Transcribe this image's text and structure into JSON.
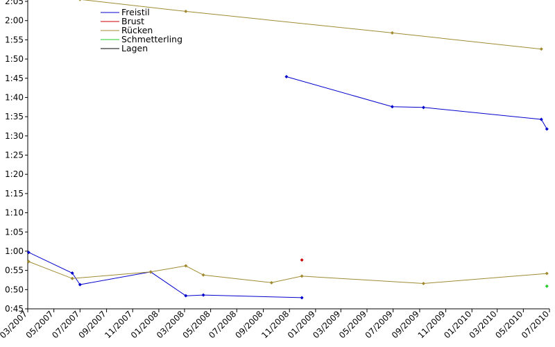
{
  "chart_data": {
    "type": "line",
    "title": "",
    "xlabel": "",
    "ylabel": "",
    "x_range": [
      "2007-03-01",
      "2010-07-01"
    ],
    "y_range": [
      "0:45",
      "2:05"
    ],
    "grid": false,
    "legend_position": "top-left",
    "x_ticks": [
      "03/2007",
      "05/2007",
      "07/2007",
      "09/2007",
      "11/2007",
      "01/2008",
      "03/2008",
      "05/2008",
      "07/2008",
      "09/2008",
      "11/2008",
      "01/2009",
      "03/2009",
      "05/2009",
      "07/2009",
      "09/2009",
      "11/2009",
      "01/2010",
      "03/2010",
      "05/2010",
      "07/2010"
    ],
    "y_ticks": [
      "0:45",
      "0:50",
      "0:55",
      "1:00",
      "1:05",
      "1:10",
      "1:15",
      "1:20",
      "1:25",
      "1:30",
      "1:35",
      "1:40",
      "1:45",
      "1:50",
      "1:55",
      "2:00",
      "2:05"
    ],
    "series": [
      {
        "name": "Freistil",
        "color": "#0000cc",
        "lines": [
          [
            [
              "2007-03-03",
              "0:59.7"
            ],
            [
              "2007-06-13",
              "0:54.3"
            ],
            [
              "2007-07-01",
              "0:51.3"
            ],
            [
              "2007-12-13",
              "0:54.6"
            ],
            [
              "2008-03-04",
              "0:48.4"
            ],
            [
              "2008-04-14",
              "0:48.6"
            ],
            [
              "2008-11-30",
              "0:47.9"
            ]
          ],
          [
            [
              "2008-10-25",
              "1:45.4"
            ],
            [
              "2009-06-29",
              "1:37.6"
            ],
            [
              "2009-09-10",
              "1:37.4"
            ],
            [
              "2010-06-12",
              "1:34.3"
            ],
            [
              "2010-06-25",
              "1:31.8"
            ]
          ]
        ]
      },
      {
        "name": "Brust",
        "color": "#cc0000",
        "lines": [
          [
            [
              "2008-11-30",
              "0:57.7"
            ]
          ]
        ]
      },
      {
        "name": "Rücken",
        "color": "#a08a30",
        "lines": [
          [
            [
              "2007-03-03",
              "0:57.3"
            ],
            [
              "2007-06-13",
              "0:52.9"
            ],
            [
              "2007-12-13",
              "0:54.6"
            ],
            [
              "2008-03-04",
              "0:56.2"
            ],
            [
              "2008-04-14",
              "0:53.8"
            ],
            [
              "2008-09-20",
              "0:51.8"
            ],
            [
              "2008-11-30",
              "0:53.5"
            ],
            [
              "2009-09-10",
              "0:51.6"
            ],
            [
              "2010-06-25",
              "0:54.2"
            ]
          ],
          [
            [
              "2007-07-01",
              "2:05.5"
            ],
            [
              "2008-03-04",
              "2:02.4"
            ],
            [
              "2009-06-29",
              "1:56.8"
            ],
            [
              "2010-06-12",
              "1:52.6"
            ]
          ]
        ]
      },
      {
        "name": "Schmetterling",
        "color": "#22cc22",
        "lines": [
          [
            [
              "2010-06-25",
              "0:50.9"
            ]
          ]
        ]
      },
      {
        "name": "Lagen",
        "color": "#000000",
        "lines": []
      }
    ]
  }
}
